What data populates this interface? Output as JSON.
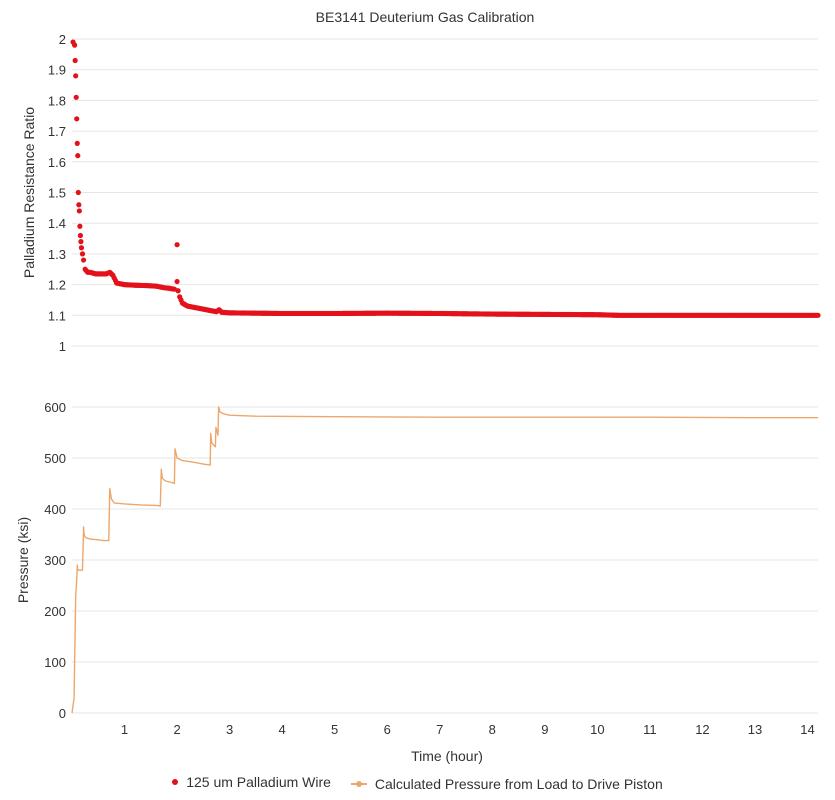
{
  "chart_data": [
    {
      "type": "scatter",
      "title": "BE3141 Deuterium Gas Calibration",
      "ylabel": "Palladium Resistance Ratio",
      "xlabel": "",
      "xlim": [
        0,
        14.2
      ],
      "ylim": [
        1,
        2
      ],
      "y_ticks": [
        "1",
        "1.1",
        "1.2",
        "1.3",
        "1.4",
        "1.5",
        "1.6",
        "1.7",
        "1.8",
        "1.9",
        "2"
      ],
      "grid": true,
      "series": [
        {
          "name": "125 um Palladium Wire",
          "color": "#e3121a",
          "x": [
            0.02,
            0.05,
            0.06,
            0.07,
            0.08,
            0.09,
            0.1,
            0.11,
            0.12,
            0.13,
            0.14,
            0.15,
            0.16,
            0.17,
            0.18,
            0.2,
            0.22,
            0.25,
            0.3,
            0.35,
            0.45,
            0.55,
            0.65,
            0.72,
            0.78,
            0.85,
            1.0,
            1.2,
            1.4,
            1.6,
            1.75,
            1.85,
            1.95,
            2.0,
            2.0,
            2.02,
            2.05,
            2.1,
            2.2,
            2.35,
            2.5,
            2.65,
            2.75,
            2.8,
            2.85,
            3.0,
            3.5,
            4.0,
            5.0,
            6.0,
            7.0,
            8.0,
            9.0,
            10.0,
            10.4,
            11.0,
            12.0,
            13.0,
            14.0,
            14.2
          ],
          "y": [
            1.99,
            1.98,
            1.93,
            1.88,
            1.81,
            1.74,
            1.66,
            1.62,
            1.5,
            1.46,
            1.44,
            1.39,
            1.36,
            1.34,
            1.32,
            1.3,
            1.28,
            1.25,
            1.24,
            1.24,
            1.235,
            1.235,
            1.235,
            1.24,
            1.23,
            1.205,
            1.2,
            1.198,
            1.197,
            1.195,
            1.19,
            1.188,
            1.185,
            1.33,
            1.21,
            1.18,
            1.16,
            1.14,
            1.13,
            1.125,
            1.12,
            1.115,
            1.112,
            1.118,
            1.11,
            1.108,
            1.107,
            1.106,
            1.106,
            1.107,
            1.106,
            1.104,
            1.103,
            1.102,
            1.1,
            1.1,
            1.1,
            1.1,
            1.1,
            1.1
          ]
        }
      ]
    },
    {
      "type": "line",
      "ylabel": "Pressure (ksi)",
      "xlabel": "Time (hour)",
      "xlim": [
        0,
        14.2
      ],
      "ylim": [
        0,
        600
      ],
      "x_ticks": [
        "1",
        "2",
        "3",
        "4",
        "5",
        "6",
        "7",
        "8",
        "9",
        "10",
        "11",
        "12",
        "13",
        "14"
      ],
      "y_ticks": [
        "0",
        "100",
        "200",
        "300",
        "400",
        "500",
        "600"
      ],
      "grid": true,
      "series": [
        {
          "name": "Calculated Pressure from Load to Drive Piston",
          "color": "#eda76c",
          "x": [
            0.0,
            0.04,
            0.05,
            0.06,
            0.07,
            0.09,
            0.1,
            0.11,
            0.12,
            0.14,
            0.16,
            0.17,
            0.2,
            0.22,
            0.23,
            0.25,
            0.28,
            0.35,
            0.45,
            0.6,
            0.7,
            0.72,
            0.75,
            0.8,
            1.0,
            1.3,
            1.6,
            1.68,
            1.7,
            1.72,
            1.78,
            1.9,
            1.95,
            1.96,
            2.0,
            2.1,
            2.3,
            2.5,
            2.63,
            2.64,
            2.66,
            2.7,
            2.73,
            2.74,
            2.78,
            2.79,
            2.82,
            2.9,
            3.0,
            3.5,
            5.0,
            7.0,
            9.0,
            11.0,
            13.0,
            14.2
          ],
          "y": [
            0,
            30,
            100,
            170,
            230,
            260,
            290,
            280,
            280,
            280,
            280,
            280,
            280,
            365,
            350,
            345,
            343,
            341,
            340,
            338,
            338,
            440,
            420,
            412,
            410,
            408,
            407,
            406,
            478,
            460,
            455,
            452,
            450,
            518,
            500,
            495,
            492,
            488,
            486,
            548,
            530,
            525,
            522,
            560,
            545,
            600,
            590,
            586,
            584,
            582,
            581,
            580,
            580,
            580,
            579,
            579
          ]
        }
      ]
    }
  ]
}
